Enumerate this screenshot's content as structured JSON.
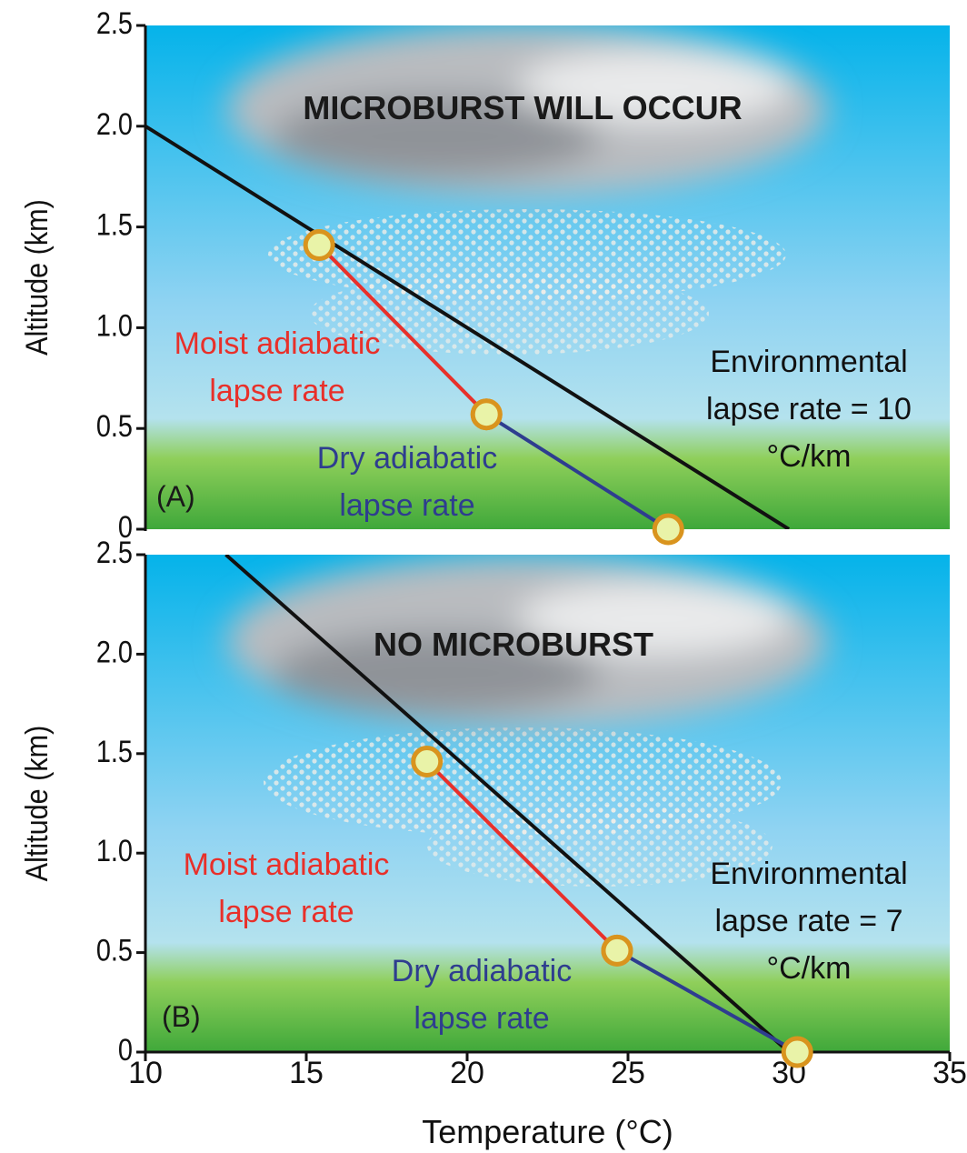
{
  "chart_data": [
    {
      "type": "line",
      "title": "MICROBURST WILL OCCUR",
      "panel_label": "(A)",
      "ylabel": "Altitude (km)",
      "xlim": [
        10,
        35
      ],
      "ylim": [
        0,
        2.5
      ],
      "yticks": [
        0,
        0.5,
        {
          "value": 1,
          "label": "1.0"
        },
        1.5,
        {
          "value": 2,
          "label": "2.0"
        },
        2.5
      ],
      "series": [
        {
          "name": "Environmental lapse rate = 10 °C/km",
          "color": "#111111",
          "x": [
            10,
            30
          ],
          "values": [
            2.0,
            0
          ],
          "markers": false
        },
        {
          "name": "Moist adiabatic lapse rate",
          "color": "#e8302a",
          "x": [
            15.4,
            20.6
          ],
          "values": [
            1.41,
            0.57
          ],
          "markers": true
        },
        {
          "name": "Dry adiabatic lapse rate",
          "color": "#2e3d8f",
          "x": [
            20.6,
            26.25
          ],
          "values": [
            0.57,
            0
          ],
          "markers": true
        }
      ]
    },
    {
      "type": "line",
      "title": "NO MICROBURST",
      "panel_label": "(B)",
      "ylabel": "Altitude (km)",
      "xlabel": "Temperature (°C)",
      "xlim": [
        10,
        35
      ],
      "ylim": [
        0,
        2.5
      ],
      "xticks": [
        10,
        15,
        20,
        25,
        30,
        35
      ],
      "yticks": [
        0,
        0.5,
        {
          "value": 1,
          "label": "1.0"
        },
        1.5,
        {
          "value": 2,
          "label": "2.0"
        },
        2.5
      ],
      "series": [
        {
          "name": "Environmental lapse rate = 7 °C/km",
          "color": "#111111",
          "x": [
            12.5,
            30
          ],
          "values": [
            2.5,
            0
          ],
          "markers": false
        },
        {
          "name": "Moist adiabatic lapse rate",
          "color": "#e8302a",
          "x": [
            18.75,
            24.66
          ],
          "values": [
            1.46,
            0.51
          ],
          "markers": true
        },
        {
          "name": "Dry adiabatic lapse rate",
          "color": "#2e3d8f",
          "x": [
            24.66,
            30.26
          ],
          "values": [
            0.51,
            0
          ],
          "markers": true
        }
      ]
    }
  ]
}
